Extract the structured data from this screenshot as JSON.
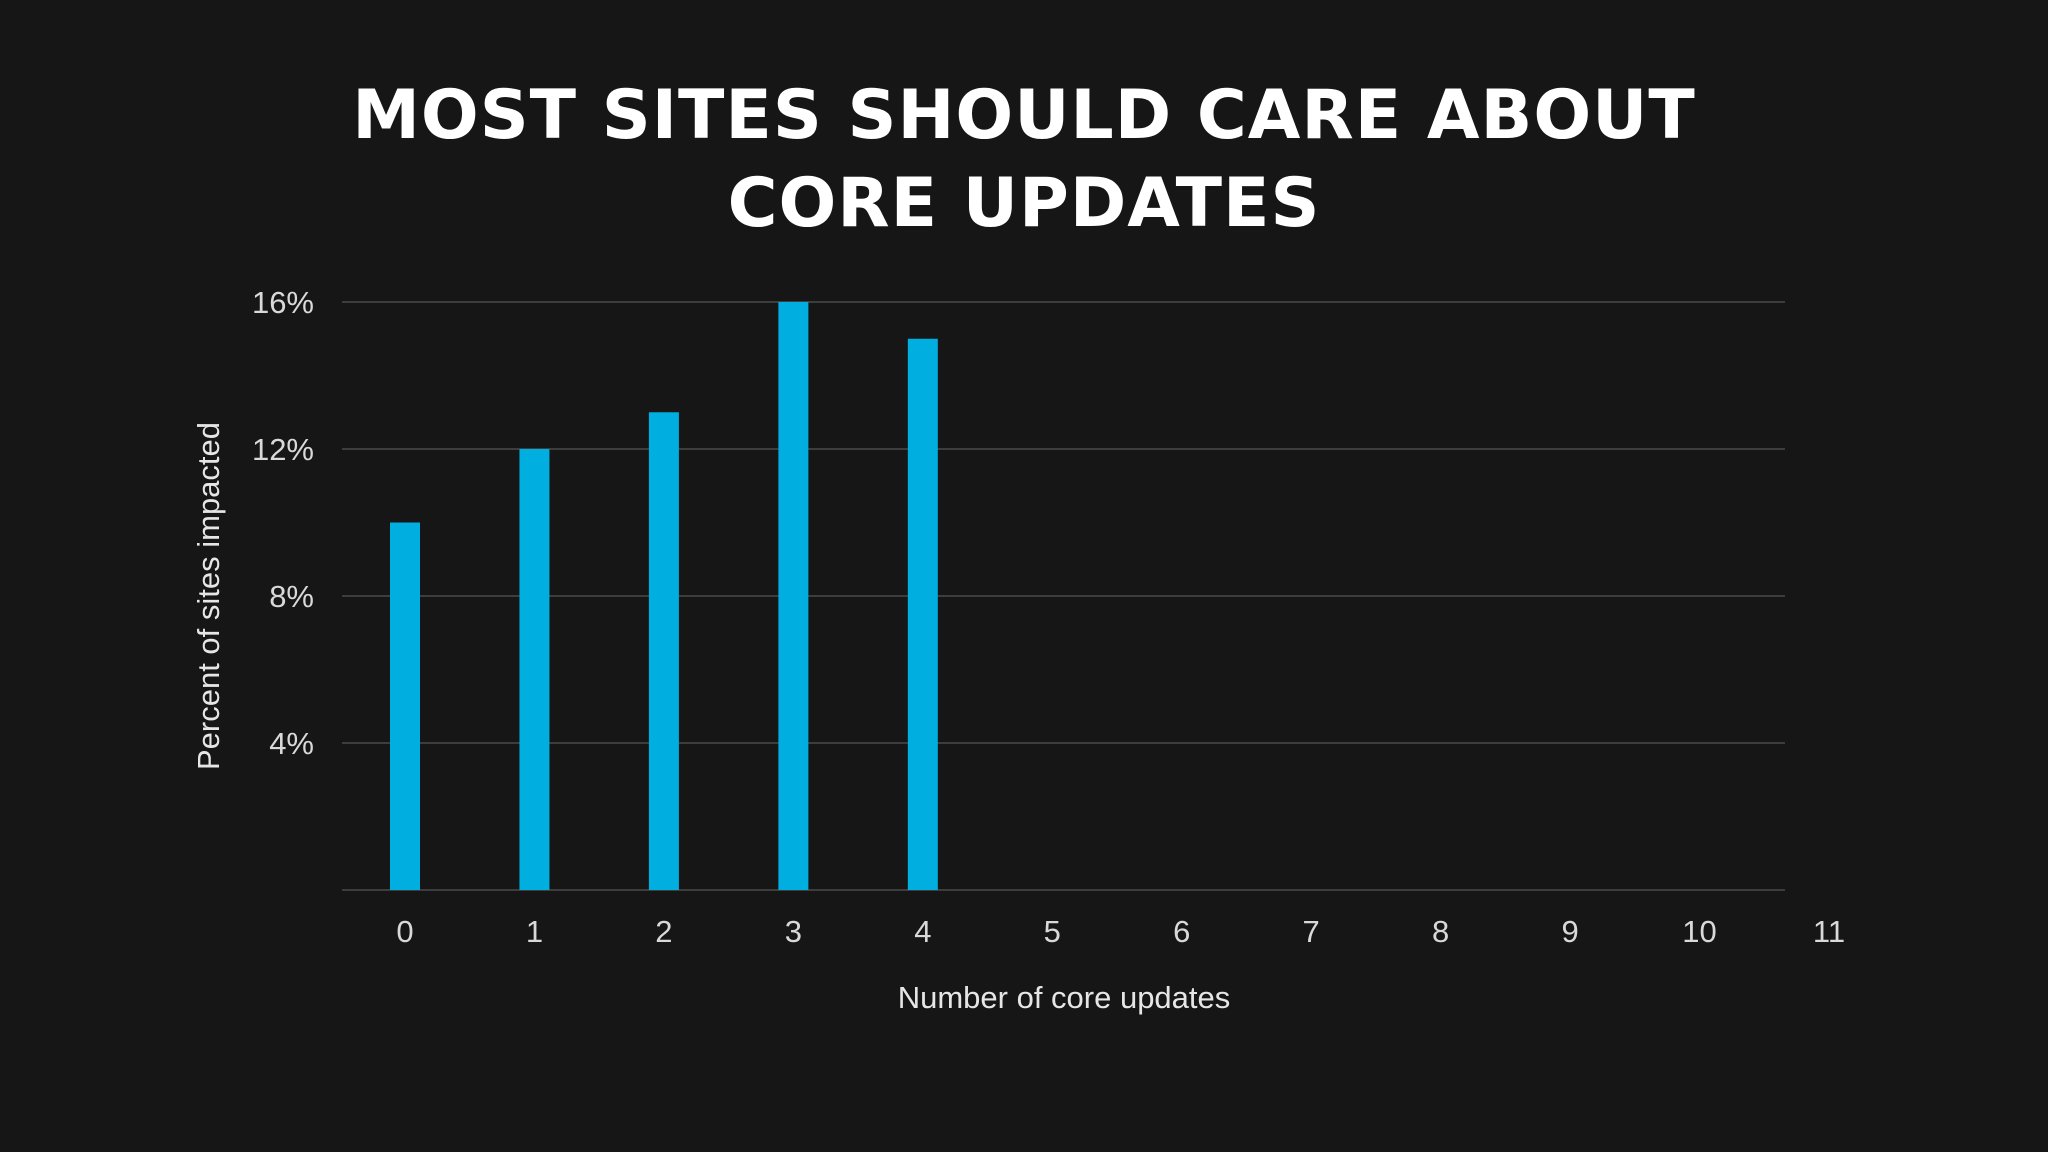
{
  "chart_data": {
    "type": "bar",
    "title_lines": [
      "MOST SITES SHOULD CARE ABOUT",
      "CORE UPDATES"
    ],
    "xlabel": "Number of core updates",
    "ylabel": "Percent of sites impacted",
    "categories": [
      "0",
      "1",
      "2",
      "3",
      "4",
      "5",
      "6",
      "7",
      "8",
      "9",
      "10",
      "11"
    ],
    "values": [
      10,
      12,
      13,
      16,
      15,
      null,
      null,
      null,
      null,
      null,
      null,
      null
    ],
    "ylim": [
      0,
      16
    ],
    "yticks": [
      4,
      8,
      12,
      16
    ],
    "ytick_labels": [
      "4%",
      "8%",
      "12%",
      "16%"
    ],
    "grid": true,
    "legend": "none",
    "colors": {
      "background": "#161616",
      "bar": "#00aee0",
      "grid": "#4a4a4a",
      "text": "#ffffff"
    }
  }
}
